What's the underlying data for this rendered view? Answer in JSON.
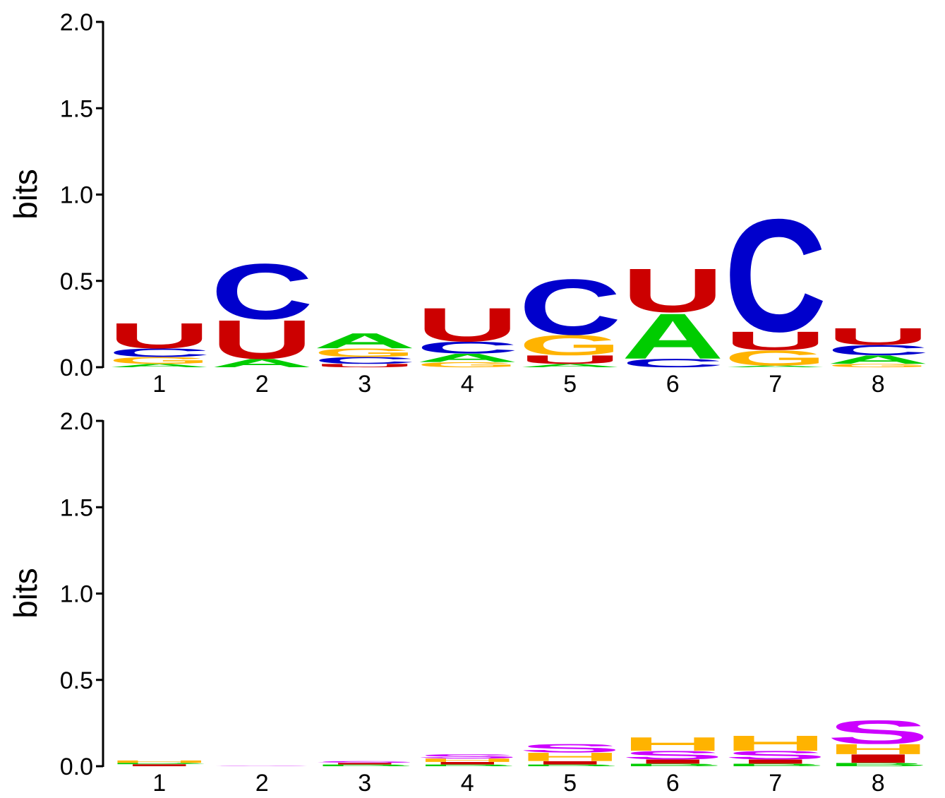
{
  "colors": {
    "A": "#00cc00",
    "C": "#0000cc",
    "G": "#ffb300",
    "U": "#cc0000",
    "T": "#ffb300",
    "S": "#cc00ff",
    "H": "#ffb300",
    "I": "#cc0000",
    "M": "#cc0000",
    "B": "#00cc00",
    "E": "#cc0000"
  },
  "chart_data": [
    {
      "type": "sequence-logo",
      "ylabel": "bits",
      "ylim": [
        0,
        2.0
      ],
      "yticks": [
        "0.0",
        "0.5",
        "1.0",
        "1.5",
        "2.0"
      ],
      "positions": [
        "1",
        "2",
        "3",
        "4",
        "5",
        "6",
        "7",
        "8"
      ],
      "stacks": [
        [
          {
            "letter": "A",
            "bits": 0.02
          },
          {
            "letter": "G",
            "bits": 0.04
          },
          {
            "letter": "C",
            "bits": 0.05
          },
          {
            "letter": "U",
            "bits": 0.15
          }
        ],
        [
          {
            "letter": "A",
            "bits": 0.05
          },
          {
            "letter": "U",
            "bits": 0.23
          },
          {
            "letter": "C",
            "bits": 0.33
          }
        ],
        [
          {
            "letter": "U",
            "bits": 0.02
          },
          {
            "letter": "C",
            "bits": 0.04
          },
          {
            "letter": "G",
            "bits": 0.05
          },
          {
            "letter": "A",
            "bits": 0.09
          }
        ],
        [
          {
            "letter": "G",
            "bits": 0.03
          },
          {
            "letter": "A",
            "bits": 0.05
          },
          {
            "letter": "C",
            "bits": 0.07
          },
          {
            "letter": "U",
            "bits": 0.2
          }
        ],
        [
          {
            "letter": "A",
            "bits": 0.02
          },
          {
            "letter": "U",
            "bits": 0.05
          },
          {
            "letter": "G",
            "bits": 0.12
          },
          {
            "letter": "C",
            "bits": 0.33
          }
        ],
        [
          {
            "letter": "C",
            "bits": 0.05
          },
          {
            "letter": "A",
            "bits": 0.27
          },
          {
            "letter": "U",
            "bits": 0.26
          }
        ],
        [
          {
            "letter": "A",
            "bits": 0.01
          },
          {
            "letter": "G",
            "bits": 0.09
          },
          {
            "letter": "U",
            "bits": 0.11
          },
          {
            "letter": "C",
            "bits": 0.67
          }
        ],
        [
          {
            "letter": "G",
            "bits": 0.02
          },
          {
            "letter": "A",
            "bits": 0.05
          },
          {
            "letter": "C",
            "bits": 0.06
          },
          {
            "letter": "U",
            "bits": 0.1
          }
        ]
      ]
    },
    {
      "type": "sequence-logo",
      "ylabel": "bits",
      "ylim": [
        0,
        2.0
      ],
      "yticks": [
        "0.0",
        "0.5",
        "1.0",
        "1.5",
        "2.0"
      ],
      "positions": [
        "1",
        "2",
        "3",
        "4",
        "5",
        "6",
        "7",
        "8"
      ],
      "stacks": [
        [
          {
            "letter": "I",
            "bits": 0.012
          },
          {
            "letter": "B",
            "bits": 0.008
          },
          {
            "letter": "H",
            "bits": 0.014
          }
        ],
        [
          {
            "letter": "S",
            "bits": 0.002
          }
        ],
        [
          {
            "letter": "B",
            "bits": 0.01
          },
          {
            "letter": "I",
            "bits": 0.01
          },
          {
            "letter": "S",
            "bits": 0.01
          }
        ],
        [
          {
            "letter": "B",
            "bits": 0.01
          },
          {
            "letter": "I",
            "bits": 0.015
          },
          {
            "letter": "H",
            "bits": 0.02
          },
          {
            "letter": "S",
            "bits": 0.025
          }
        ],
        [
          {
            "letter": "B",
            "bits": 0.01
          },
          {
            "letter": "I",
            "bits": 0.02
          },
          {
            "letter": "H",
            "bits": 0.05
          },
          {
            "letter": "S",
            "bits": 0.05
          }
        ],
        [
          {
            "letter": "B",
            "bits": 0.015
          },
          {
            "letter": "I",
            "bits": 0.025
          },
          {
            "letter": "S",
            "bits": 0.05
          },
          {
            "letter": "H",
            "bits": 0.08
          }
        ],
        [
          {
            "letter": "B",
            "bits": 0.015
          },
          {
            "letter": "I",
            "bits": 0.025
          },
          {
            "letter": "S",
            "bits": 0.05
          },
          {
            "letter": "H",
            "bits": 0.09
          }
        ],
        [
          {
            "letter": "B",
            "bits": 0.02
          },
          {
            "letter": "I",
            "bits": 0.05
          },
          {
            "letter": "H",
            "bits": 0.06
          },
          {
            "letter": "S",
            "bits": 0.14
          }
        ]
      ]
    }
  ]
}
